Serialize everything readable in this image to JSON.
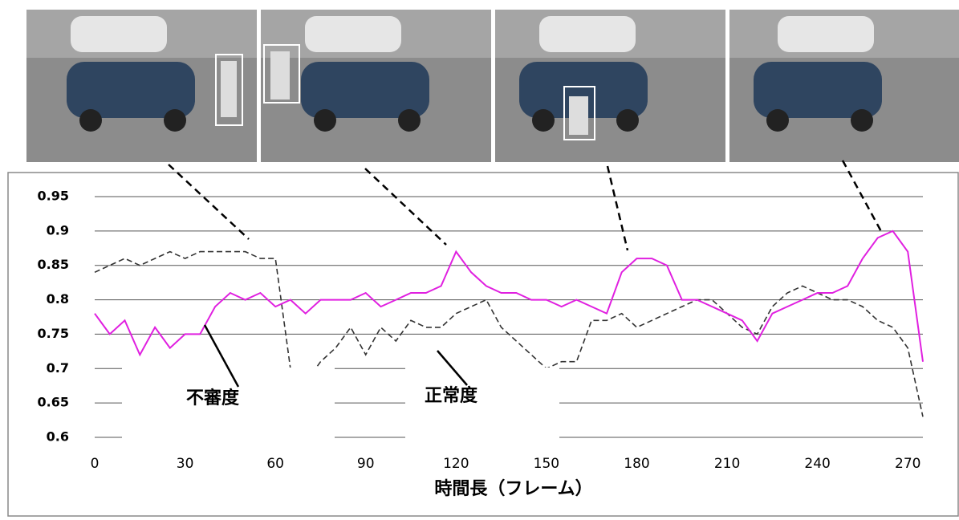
{
  "chart_data": {
    "type": "line",
    "x_label": "時間長（フレーム）",
    "x": [
      0,
      5,
      10,
      15,
      20,
      25,
      30,
      35,
      40,
      45,
      50,
      55,
      60,
      65,
      70,
      75,
      80,
      85,
      90,
      95,
      100,
      105,
      110,
      115,
      120,
      125,
      130,
      135,
      140,
      145,
      150,
      155,
      160,
      165,
      170,
      175,
      180,
      185,
      190,
      195,
      200,
      205,
      210,
      215,
      220,
      225,
      230,
      235,
      240,
      245,
      250,
      255,
      260,
      265,
      270,
      275
    ],
    "series": [
      {
        "name": "不審度",
        "color": "#e020e0",
        "dash": false,
        "values": [
          0.78,
          0.75,
          0.77,
          0.72,
          0.76,
          0.73,
          0.75,
          0.75,
          0.79,
          0.81,
          0.8,
          0.81,
          0.79,
          0.8,
          0.78,
          0.8,
          0.8,
          0.8,
          0.81,
          0.79,
          0.8,
          0.81,
          0.81,
          0.82,
          0.87,
          0.84,
          0.82,
          0.81,
          0.81,
          0.8,
          0.8,
          0.79,
          0.8,
          0.79,
          0.78,
          0.84,
          0.86,
          0.86,
          0.85,
          0.8,
          0.8,
          0.79,
          0.78,
          0.77,
          0.74,
          0.78,
          0.79,
          0.8,
          0.81,
          0.81,
          0.82,
          0.86,
          0.89,
          0.9,
          0.87,
          0.71
        ]
      },
      {
        "name": "正常度",
        "color": "#333333",
        "dash": true,
        "values": [
          0.84,
          0.85,
          0.86,
          0.85,
          0.86,
          0.87,
          0.86,
          0.87,
          0.87,
          0.87,
          0.87,
          0.86,
          0.86,
          0.7,
          0.68,
          0.71,
          0.73,
          0.76,
          0.72,
          0.76,
          0.74,
          0.77,
          0.76,
          0.76,
          0.78,
          0.79,
          0.8,
          0.76,
          0.74,
          0.72,
          0.7,
          0.71,
          0.71,
          0.77,
          0.77,
          0.78,
          0.76,
          0.77,
          0.78,
          0.79,
          0.8,
          0.8,
          0.78,
          0.76,
          0.75,
          0.79,
          0.81,
          0.82,
          0.81,
          0.8,
          0.8,
          0.79,
          0.77,
          0.76,
          0.73,
          0.63
        ]
      }
    ],
    "xlim": [
      0,
      275
    ],
    "xticks": [
      0,
      30,
      60,
      90,
      120,
      150,
      180,
      210,
      240,
      270
    ],
    "ylim": [
      0.6,
      0.95
    ],
    "yticks": [
      0.6,
      0.65,
      0.7,
      0.75,
      0.8,
      0.85,
      0.9,
      0.95
    ],
    "grid": true
  }
}
